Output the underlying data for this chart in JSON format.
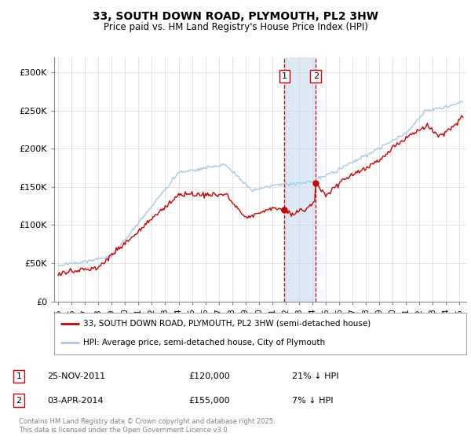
{
  "title": "33, SOUTH DOWN ROAD, PLYMOUTH, PL2 3HW",
  "subtitle": "Price paid vs. HM Land Registry's House Price Index (HPI)",
  "hpi_color": "#a8c8e8",
  "price_color": "#cc0000",
  "p1_t": 2011.917,
  "p2_t": 2014.25,
  "p1_price": 120000,
  "p2_price": 155000,
  "ylim_min": 0,
  "ylim_max": 320000,
  "yticks": [
    0,
    50000,
    100000,
    150000,
    200000,
    250000,
    300000
  ],
  "ytick_labels": [
    "£0",
    "£50K",
    "£100K",
    "£150K",
    "£200K",
    "£250K",
    "£300K"
  ],
  "xlim_min": 1994.7,
  "xlim_max": 2025.5,
  "legend_line1": "33, SOUTH DOWN ROAD, PLYMOUTH, PL2 3HW (semi-detached house)",
  "legend_line2": "HPI: Average price, semi-detached house, City of Plymouth",
  "row1_label": "1",
  "row1_date": "25-NOV-2011",
  "row1_price": "£120,000",
  "row1_note": "21% ↓ HPI",
  "row2_label": "2",
  "row2_date": "03-APR-2014",
  "row2_price": "£155,000",
  "row2_note": "7% ↓ HPI",
  "footer": "Contains HM Land Registry data © Crown copyright and database right 2025.\nThis data is licensed under the Open Government Licence v3.0.",
  "vspan_color": "#dceaf5",
  "vline_color": "#cc0000",
  "grid_color": "#cccccc",
  "bg_color": "#ffffff"
}
